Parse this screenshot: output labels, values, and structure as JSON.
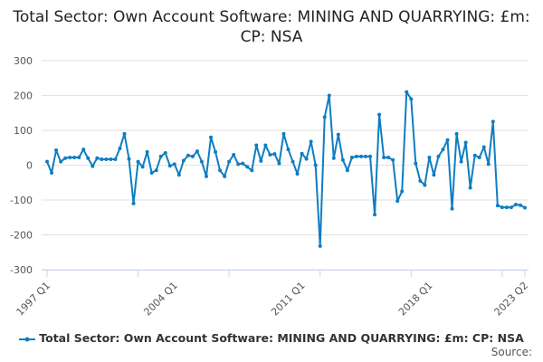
{
  "chart_data": {
    "type": "line",
    "title": "Total Sector: Own Account Software: MINING AND QUARRYING: £m: CP: NSA",
    "xlabel": "",
    "ylabel": "",
    "ylim": [
      -300,
      300
    ],
    "yticks": [
      "300",
      "200",
      "100",
      "0",
      "-100",
      "-200",
      "-300"
    ],
    "xtick_labels": [
      "1997 Q1",
      "2004 Q1",
      "2011 Q1",
      "2018 Q1",
      "2023 Q2"
    ],
    "x_start": "1997 Q1",
    "x_end": "2023 Q2",
    "grid": true,
    "legend_position": "bottom",
    "color": "#0f7dc2",
    "series": [
      {
        "name": "Total Sector: Own Account Software: MINING AND QUARRYING: £m: CP: NSA",
        "values": [
          10,
          -22,
          43,
          10,
          20,
          22,
          22,
          22,
          45,
          20,
          -3,
          20,
          17,
          17,
          17,
          17,
          48,
          90,
          18,
          -110,
          10,
          -5,
          38,
          -22,
          -15,
          25,
          35,
          -2,
          3,
          -28,
          13,
          28,
          25,
          40,
          10,
          -32,
          80,
          38,
          -15,
          -32,
          10,
          30,
          3,
          5,
          -5,
          -15,
          57,
          12,
          57,
          30,
          32,
          5,
          90,
          45,
          10,
          -25,
          33,
          18,
          68,
          0,
          -232,
          138,
          200,
          20,
          88,
          15,
          -15,
          22,
          25,
          25,
          25,
          25,
          -142,
          145,
          22,
          22,
          15,
          -103,
          -75,
          210,
          190,
          5,
          -45,
          -57,
          22,
          -28,
          25,
          45,
          72,
          -125,
          90,
          10,
          65,
          -65,
          28,
          22,
          52,
          3,
          125,
          -116,
          -121,
          -121,
          -121,
          -113,
          -115,
          -122
        ]
      }
    ]
  },
  "source_label": "Source:"
}
